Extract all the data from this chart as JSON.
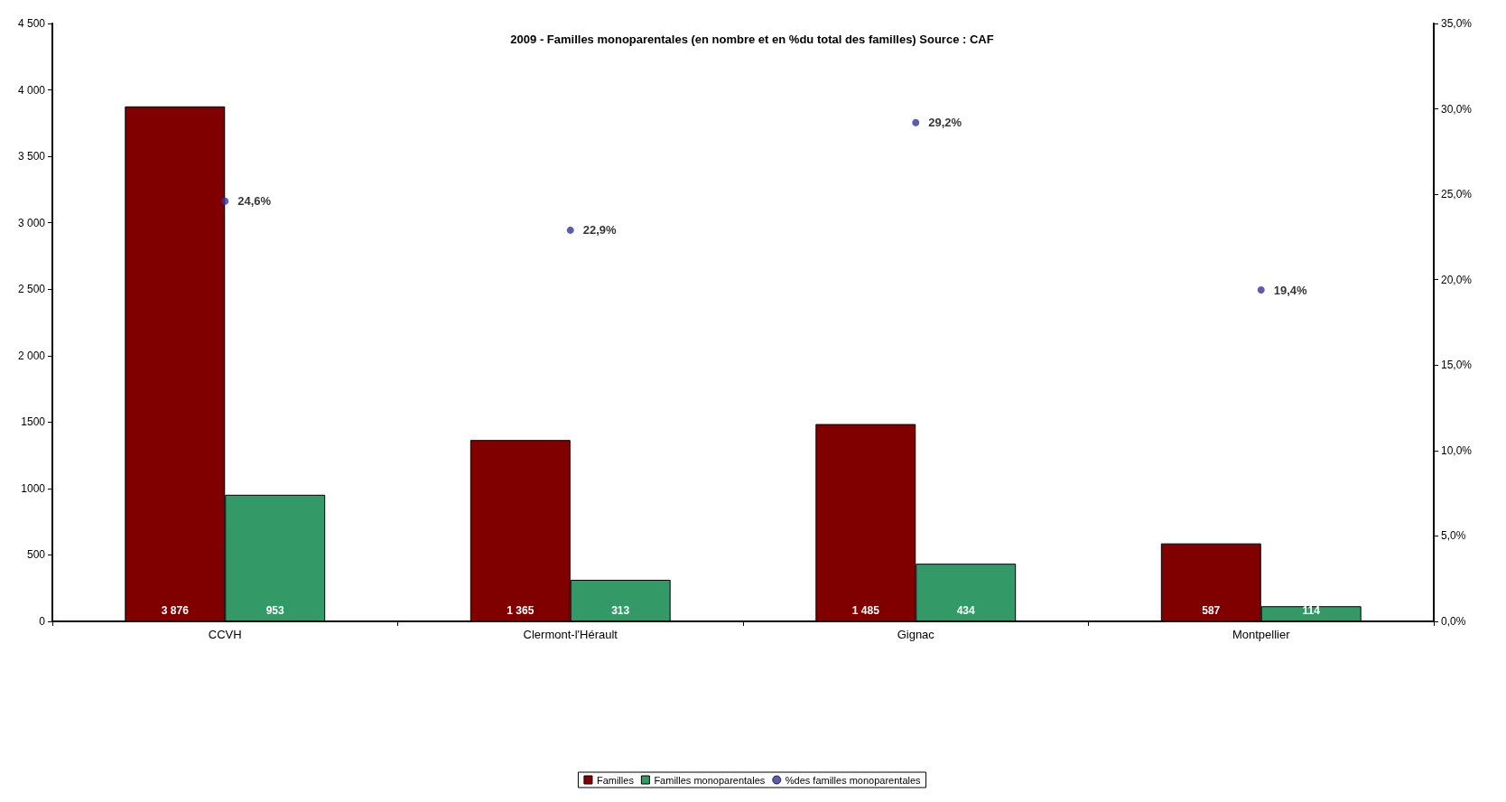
{
  "chart_data": {
    "type": "bar",
    "title": "2009 - Familles monoparentales (en nombre et en %du total des familles) Source : CAF",
    "categories": [
      "CCVH",
      "Clermont-l'Hérault",
      "Gignac",
      "Montpellier"
    ],
    "series": [
      {
        "name": "Familles",
        "color": "#800000",
        "values": [
          3876,
          1365,
          1485,
          587
        ],
        "value_labels": [
          "3 876",
          "1 365",
          "1 485",
          "587"
        ]
      },
      {
        "name": "Familles monoparentales",
        "color": "#339966",
        "values": [
          953,
          313,
          434,
          114
        ],
        "value_labels": [
          "953",
          "313",
          "434",
          "114"
        ]
      },
      {
        "name": "%des familles monoparentales",
        "type": "scatter",
        "axis": "y2",
        "color": "#333399",
        "x": [
          "CCVH",
          "Clermont-l'Hérault",
          "Gignac",
          "Montpellier"
        ],
        "values": [
          24.6,
          22.9,
          29.2,
          19.4
        ],
        "value_labels": [
          "24,6%",
          "22,9%",
          "29,2%",
          "19,4%"
        ]
      }
    ],
    "ylim": [
      0,
      4500
    ],
    "yticks": [
      0,
      500,
      1000,
      1500,
      {
        "value": 2000,
        "label": "2 000"
      },
      {
        "value": 2500,
        "label": "2 500"
      },
      {
        "value": 3000,
        "label": "3 000"
      },
      {
        "value": 3500,
        "label": "3 500"
      },
      {
        "value": 4000,
        "label": "4 000"
      },
      {
        "value": 4500,
        "label": "4 500"
      }
    ],
    "y2lim": [
      0,
      35
    ],
    "y2ticks": [
      {
        "value": 0,
        "label": "0,0%"
      },
      {
        "value": 5,
        "label": "5,0%"
      },
      {
        "value": 10,
        "label": "10,0%"
      },
      {
        "value": 15,
        "label": "15,0%"
      },
      {
        "value": 20,
        "label": "20,0%"
      },
      {
        "value": 25,
        "label": "25,0%"
      },
      {
        "value": 30,
        "label": "30,0%"
      },
      {
        "value": 35,
        "label": "35,0%"
      }
    ],
    "grid": false,
    "legend": "bottom",
    "marker": "circle"
  }
}
